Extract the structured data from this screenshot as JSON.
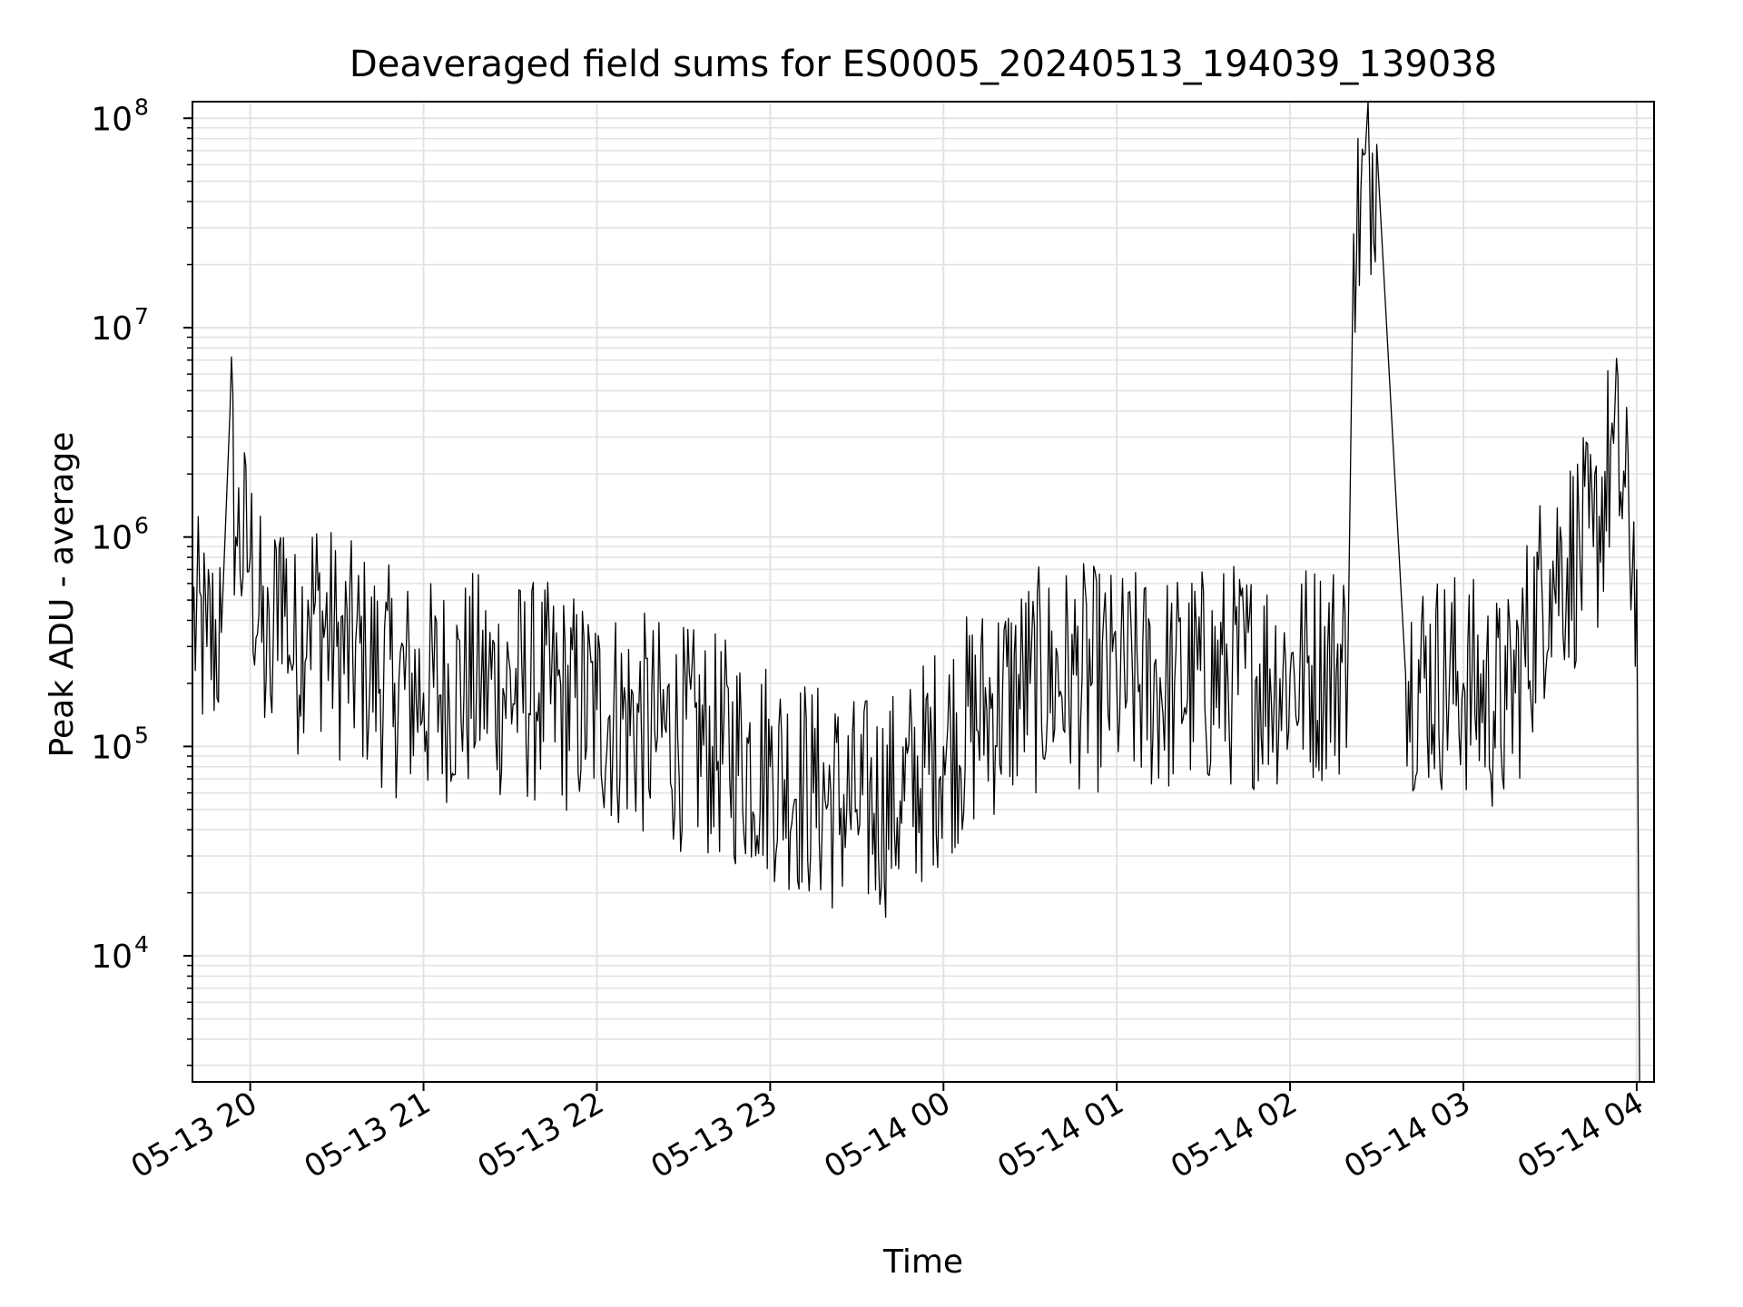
{
  "chart_data": {
    "type": "line",
    "title": "Deaveraged field sums for ES0005_20240513_194039_139038",
    "xlabel": "Time",
    "ylabel": "Peak ADU - average",
    "yscale": "log",
    "ylim": [
      2500,
      120000000
    ],
    "xlim": [
      "2024-05-13 19:40",
      "2024-05-14 04:06"
    ],
    "grid": true,
    "x_ticks": [
      "05-13 20",
      "05-13 21",
      "05-13 22",
      "05-13 23",
      "05-14 00",
      "05-14 01",
      "05-14 02",
      "05-14 03",
      "05-14 04"
    ],
    "y_ticks": [
      {
        "base": "10",
        "exp": "4"
      },
      {
        "base": "10",
        "exp": "5"
      },
      {
        "base": "10",
        "exp": "6"
      },
      {
        "base": "10",
        "exp": "7"
      },
      {
        "base": "10",
        "exp": "8"
      }
    ],
    "line_color": "#000000",
    "series": [
      {
        "x": [
          "2024-05-13 19:40",
          "2024-05-13 19:45",
          "2024-05-13 19:50",
          "2024-05-13 19:53",
          "2024-05-13 19:55",
          "2024-05-13 20:00",
          "2024-05-13 20:07",
          "2024-05-13 20:10",
          "2024-05-13 20:15",
          "2024-05-13 20:20",
          "2024-05-13 20:30",
          "2024-05-13 20:40",
          "2024-05-13 20:50",
          "2024-05-13 21:00",
          "2024-05-13 21:20",
          "2024-05-13 21:40",
          "2024-05-13 22:00",
          "2024-05-13 22:20",
          "2024-05-13 22:40",
          "2024-05-13 23:00",
          "2024-05-13 23:15",
          "2024-05-13 23:30",
          "2024-05-13 23:45",
          "2024-05-14 00:00",
          "2024-05-14 00:15",
          "2024-05-14 00:30",
          "2024-05-14 00:45",
          "2024-05-14 01:00",
          "2024-05-14 01:20",
          "2024-05-14 01:40",
          "2024-05-14 02:00",
          "2024-05-14 02:20",
          "2024-05-14 02:22",
          "2024-05-14 02:30",
          "2024-05-14 02:40",
          "2024-05-14 03:00",
          "2024-05-14 03:15",
          "2024-05-14 03:30",
          "2024-05-14 03:45",
          "2024-05-14 03:52",
          "2024-05-14 04:00",
          "2024-05-14 04:01"
        ],
        "y": [
          400000,
          300000,
          350000,
          4000000,
          1000000,
          800000,
          180000,
          900000,
          250000,
          500000,
          300000,
          250000,
          200000,
          180000,
          200000,
          180000,
          150000,
          120000,
          100000,
          80000,
          60000,
          50000,
          55000,
          100000,
          150000,
          200000,
          220000,
          200000,
          200000,
          220000,
          220000,
          250000,
          28000000,
          75000000,
          220000,
          200000,
          150000,
          700000,
          900000,
          2800000,
          700000,
          2500
        ]
      }
    ]
  }
}
